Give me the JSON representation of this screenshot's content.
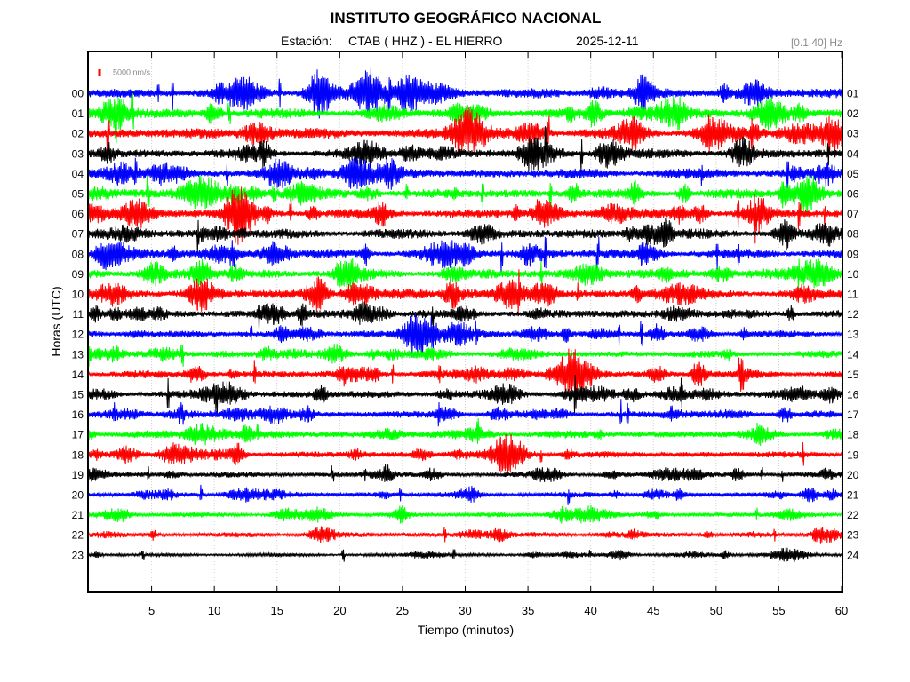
{
  "header": {
    "title": "INSTITUTO GEOGRÁFICO NACIONAL",
    "station_label": "Estación:",
    "station": "CTAB ( HHZ ) - EL HIERRO",
    "date": "2025-12-11",
    "band": "[0.1 40] Hz",
    "scale_label": "5000 nm/s"
  },
  "chart_data": {
    "type": "line",
    "xlabel": "Tiempo (minutos)",
    "ylabel": "Horas (UTC)",
    "xlim": [
      0,
      60
    ],
    "xticks": [
      "5",
      "10",
      "15",
      "20",
      "25",
      "30",
      "35",
      "40",
      "45",
      "50",
      "55",
      "60"
    ],
    "grid": true,
    "hour_labels_left": [
      "00",
      "01",
      "02",
      "03",
      "04",
      "05",
      "06",
      "07",
      "08",
      "09",
      "10",
      "11",
      "12",
      "13",
      "14",
      "15",
      "16",
      "17",
      "18",
      "19",
      "20",
      "21",
      "22",
      "23"
    ],
    "hour_labels_right": [
      "01",
      "02",
      "03",
      "04",
      "05",
      "06",
      "07",
      "08",
      "09",
      "10",
      "11",
      "12",
      "13",
      "14",
      "15",
      "16",
      "17",
      "18",
      "19",
      "20",
      "21",
      "22",
      "23",
      "24"
    ],
    "trace_colors": [
      "#0000ff",
      "#00ff00",
      "#ff0000",
      "#000000"
    ],
    "scale_color": "#ff0000",
    "trace_amplitude_relative": [
      1.0,
      1.0,
      1.05,
      0.95,
      1.0,
      0.95,
      0.95,
      0.95,
      0.95,
      1.0,
      0.95,
      0.85,
      0.7,
      0.7,
      0.75,
      0.75,
      0.7,
      0.75,
      0.65,
      0.55,
      0.55,
      0.5,
      0.5,
      0.35
    ]
  }
}
